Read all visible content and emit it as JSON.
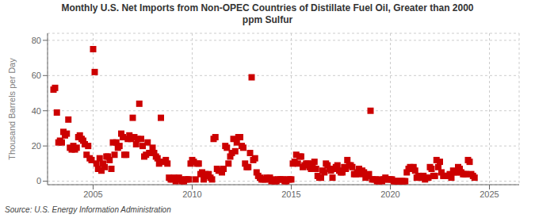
{
  "chart_data": {
    "type": "scatter",
    "title": "Monthly U.S. Net Imports from Non-OPEC Countries of Distillate Fuel Oil, Greater than 2000\nppm Sulfur",
    "ylabel": "Thousand Barrels per Day",
    "annotations": [
      "Source: U.S. Energy Information Administration"
    ],
    "color": "#cc0000",
    "marker": "square",
    "grid": true,
    "xlim": [
      2002.7,
      2026.5
    ],
    "ylim": [
      -2,
      84
    ],
    "xticks": [
      2005,
      2010,
      2015,
      2020,
      2025
    ],
    "yticks": [
      0,
      20,
      40,
      60,
      80
    ],
    "x": [
      2003.0,
      2003.08,
      2003.17,
      2003.25,
      2003.33,
      2003.42,
      2003.5,
      2003.58,
      2003.67,
      2003.75,
      2003.83,
      2003.92,
      2004.0,
      2004.08,
      2004.17,
      2004.25,
      2004.33,
      2004.42,
      2004.5,
      2004.58,
      2004.67,
      2004.75,
      2004.83,
      2004.92,
      2005.0,
      2005.08,
      2005.17,
      2005.25,
      2005.33,
      2005.42,
      2005.5,
      2005.58,
      2005.67,
      2005.75,
      2005.83,
      2005.92,
      2006.0,
      2006.08,
      2006.17,
      2006.25,
      2006.33,
      2006.42,
      2006.5,
      2006.58,
      2006.67,
      2006.75,
      2006.83,
      2006.92,
      2007.0,
      2007.08,
      2007.17,
      2007.25,
      2007.33,
      2007.42,
      2007.5,
      2007.58,
      2007.67,
      2007.75,
      2007.83,
      2007.92,
      2008.0,
      2008.08,
      2008.17,
      2008.25,
      2008.33,
      2008.42,
      2008.5,
      2008.58,
      2008.67,
      2008.75,
      2008.83,
      2008.92,
      2009.0,
      2009.08,
      2009.17,
      2009.25,
      2009.33,
      2009.42,
      2009.5,
      2009.58,
      2009.67,
      2009.75,
      2009.83,
      2009.92,
      2010.0,
      2010.08,
      2010.17,
      2010.25,
      2010.33,
      2010.42,
      2010.5,
      2010.58,
      2010.67,
      2010.75,
      2010.83,
      2010.92,
      2011.0,
      2011.08,
      2011.17,
      2011.25,
      2011.33,
      2011.42,
      2011.5,
      2011.58,
      2011.67,
      2011.75,
      2011.83,
      2011.92,
      2012.0,
      2012.08,
      2012.17,
      2012.25,
      2012.33,
      2012.42,
      2012.5,
      2012.58,
      2012.67,
      2012.75,
      2012.83,
      2012.92,
      2013.0,
      2013.08,
      2013.17,
      2013.25,
      2013.33,
      2013.42,
      2013.5,
      2013.58,
      2013.67,
      2013.75,
      2013.83,
      2013.92,
      2014.0,
      2014.08,
      2014.17,
      2014.25,
      2014.33,
      2014.42,
      2014.5,
      2014.58,
      2014.67,
      2014.75,
      2014.83,
      2014.92,
      2015.0,
      2015.08,
      2015.17,
      2015.25,
      2015.33,
      2015.42,
      2015.5,
      2015.58,
      2015.67,
      2015.75,
      2015.83,
      2015.92,
      2016.0,
      2016.08,
      2016.17,
      2016.25,
      2016.33,
      2016.42,
      2016.5,
      2016.58,
      2016.67,
      2016.75,
      2016.83,
      2016.92,
      2017.0,
      2017.08,
      2017.17,
      2017.25,
      2017.33,
      2017.42,
      2017.5,
      2017.58,
      2017.67,
      2017.75,
      2017.83,
      2017.92,
      2018.0,
      2018.08,
      2018.17,
      2018.25,
      2018.33,
      2018.42,
      2018.5,
      2018.58,
      2018.67,
      2018.75,
      2018.83,
      2018.92,
      2019.0,
      2019.08,
      2019.17,
      2019.25,
      2019.33,
      2019.42,
      2019.5,
      2019.58,
      2019.67,
      2019.75,
      2019.83,
      2019.92,
      2020.0,
      2020.08,
      2020.17,
      2020.25,
      2020.33,
      2020.42,
      2020.5,
      2020.58,
      2020.67,
      2020.75,
      2020.83,
      2020.92,
      2021.0,
      2021.08,
      2021.17,
      2021.25,
      2021.33,
      2021.42,
      2021.5,
      2021.58,
      2021.67,
      2021.75,
      2021.83,
      2021.92,
      2022.0,
      2022.08,
      2022.17,
      2022.25,
      2022.33,
      2022.42,
      2022.5,
      2022.58,
      2022.67,
      2022.75,
      2022.83,
      2022.92,
      2023.0,
      2023.08,
      2023.17,
      2023.25,
      2023.33,
      2023.42,
      2023.5,
      2023.58,
      2023.67,
      2023.75,
      2023.83,
      2023.92,
      2024.0,
      2024.08,
      2024.17,
      2024.25
    ],
    "values": [
      52,
      53,
      39,
      22,
      23,
      22,
      28,
      26,
      27,
      35,
      19,
      18,
      20,
      18,
      19,
      25,
      26,
      24,
      23,
      21,
      15,
      20,
      13,
      12,
      75,
      62,
      10,
      7,
      13,
      6,
      10,
      8,
      14,
      14,
      12,
      7,
      22,
      15,
      22,
      19,
      20,
      27,
      25,
      15,
      15,
      24,
      26,
      24,
      36,
      25,
      21,
      24,
      44,
      24,
      20,
      14,
      15,
      22,
      16,
      16,
      19,
      16,
      14,
      13,
      10,
      36,
      11,
      11,
      12,
      10,
      2,
      1,
      1,
      2,
      0,
      1,
      2,
      1,
      0,
      0,
      1,
      1,
      1,
      10,
      12,
      11,
      1,
      10,
      10,
      4,
      5,
      1,
      4,
      3,
      4,
      2,
      1,
      24,
      25,
      7,
      6,
      6,
      5,
      7,
      20,
      19,
      10,
      14,
      16,
      24,
      17,
      22,
      25,
      25,
      20,
      19,
      10,
      8,
      8,
      16,
      59,
      12,
      13,
      5,
      3,
      2,
      1,
      1,
      1,
      2,
      1,
      2,
      0,
      1,
      0,
      0,
      1,
      1,
      1,
      1,
      0,
      0,
      1,
      1,
      1,
      10,
      11,
      15,
      10,
      14,
      14,
      8,
      9,
      10,
      10,
      8,
      7,
      10,
      11,
      7,
      3,
      2,
      2,
      6,
      5,
      10,
      9,
      7,
      6,
      2,
      7,
      8,
      9,
      6,
      5,
      5,
      8,
      7,
      12,
      9,
      9,
      8,
      4,
      4,
      5,
      7,
      4,
      6,
      5,
      2,
      3,
      4,
      40,
      1,
      1,
      1,
      0,
      0,
      1,
      0,
      1,
      2,
      1,
      1,
      1,
      1,
      0,
      0,
      0,
      0,
      0,
      0,
      0,
      0,
      5,
      7,
      8,
      7,
      8,
      6,
      2,
      3,
      2,
      2,
      3,
      1,
      2,
      2,
      8,
      7,
      3,
      3,
      12,
      8,
      11,
      5,
      3,
      3,
      3,
      3,
      4,
      2,
      6,
      5,
      5,
      8,
      7,
      5,
      4,
      4,
      4,
      12,
      11,
      4,
      3,
      2
    ]
  }
}
